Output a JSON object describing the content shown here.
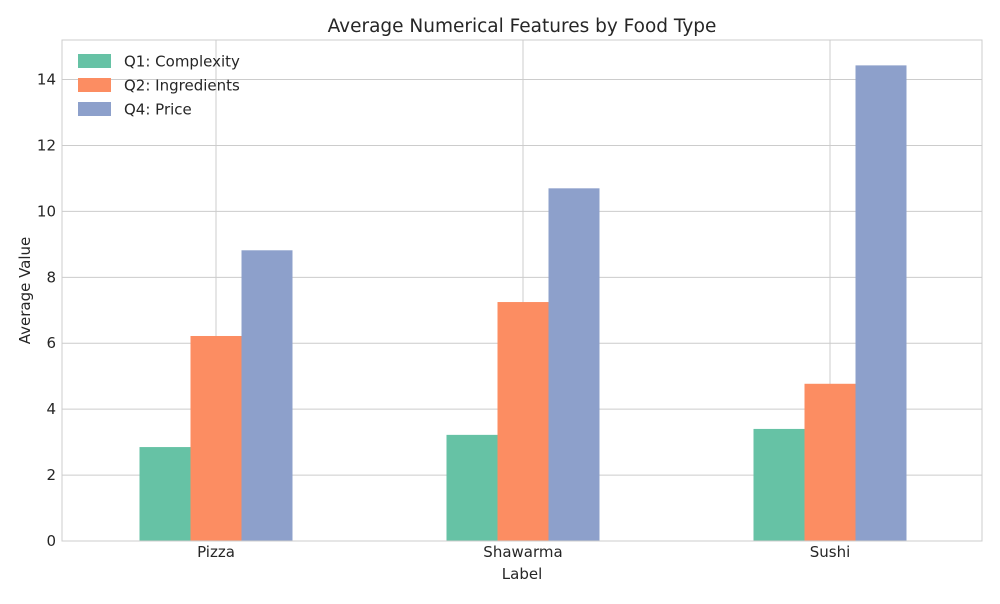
{
  "chart_data": {
    "type": "bar",
    "title": "Average Numerical Features by Food Type",
    "xlabel": "Label",
    "ylabel": "Average Value",
    "categories": [
      "Pizza",
      "Shawarma",
      "Sushi"
    ],
    "series": [
      {
        "name": "Q1: Complexity",
        "values": [
          2.85,
          3.22,
          3.4
        ],
        "color": "#66c2a5"
      },
      {
        "name": "Q2: Ingredients",
        "values": [
          6.22,
          7.25,
          4.77
        ],
        "color": "#fc8d62"
      },
      {
        "name": "Q4: Price",
        "values": [
          8.82,
          10.7,
          14.43
        ],
        "color": "#8da0cb"
      }
    ],
    "ylim": [
      0,
      15.2
    ],
    "yticks": [
      "0",
      "2",
      "4",
      "6",
      "8",
      "10",
      "12",
      "14"
    ],
    "grid": true,
    "legend_position": "top-left"
  }
}
